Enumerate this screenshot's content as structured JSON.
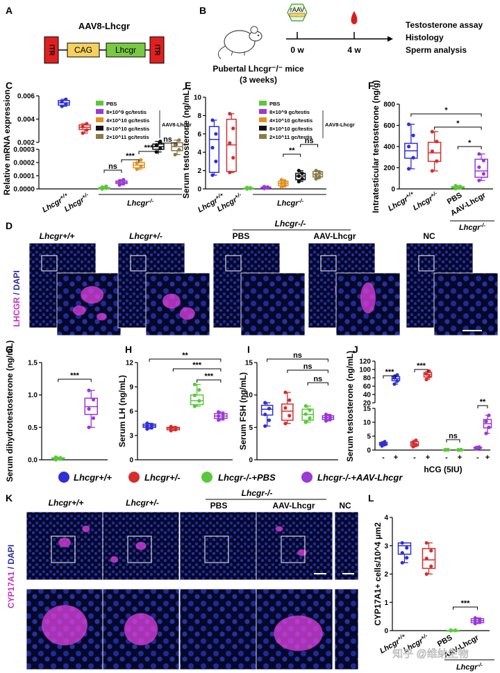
{
  "colors": {
    "wt": "#2f2fd6",
    "het": "#d62d2d",
    "pbs": "#5ac83a",
    "aav": "#9a38d8",
    "d1": "#9a38d8",
    "d2": "#e0901e",
    "d3": "#111111",
    "d4": "#8b7a4a",
    "itr": "#e02020",
    "cag": "#f5d160",
    "lhcgr_box": "#7ac943",
    "magenta": "#e040e0",
    "nuclei": "#1e2a9a"
  },
  "panel_letters": [
    "A",
    "B",
    "C",
    "D",
    "E",
    "F",
    "G",
    "H",
    "I",
    "J",
    "K",
    "L"
  ],
  "panelA": {
    "title": "AAV8-Lhcgr",
    "boxes": [
      "ITR",
      "CAG",
      "Lhcgr",
      "ITR"
    ]
  },
  "panelB": {
    "vial": "rAAV",
    "timepoints": [
      "0 w",
      "4 w"
    ],
    "mouse_line1": "Pubertal Lhcgr⁻/⁻ mice",
    "mouse_line2": "(3 weeks)",
    "outcomes": [
      "Testosterone assay",
      "Histology",
      "Sperm analysis"
    ]
  },
  "legend_doses": {
    "entries": [
      "PBS",
      "8×10^9 gc/testis",
      "4×10^10 gc/testis",
      "8×10^10 gc/testis",
      "2×10^11 gc/testis"
    ],
    "group_label": "AAV8-Lhcgr"
  },
  "genotypes": {
    "wt": "Lhcgr+/+",
    "het": "Lhcgr+/-",
    "ko": "Lhcgr-/-"
  },
  "chart_data": [
    {
      "panel": "C",
      "type": "box",
      "ylabel": "Relative mRNA expression",
      "y_upper_ticks": [
        "0.002",
        "0.004",
        "0.006"
      ],
      "y_lower_ticks": [
        "0.0000",
        "0.0001",
        "0.0002",
        "0.0003"
      ],
      "groups": [
        {
          "name": "Lhcgr+/+",
          "color": "wt",
          "median": 0.0054,
          "q1": 0.0052,
          "q3": 0.0056,
          "min": 0.0051,
          "max": 0.0057,
          "segment": "upper"
        },
        {
          "name": "Lhcgr+/-",
          "color": "het",
          "median": 0.0033,
          "q1": 0.0031,
          "q3": 0.0035,
          "min": 0.0028,
          "max": 0.0036,
          "segment": "upper"
        },
        {
          "name": "PBS",
          "color": "pbs",
          "median": 5e-06,
          "q1": 0.0,
          "q3": 1e-05,
          "min": 0.0,
          "max": 2e-05,
          "segment": "lower"
        },
        {
          "name": "8x10^9",
          "color": "d1",
          "median": 5e-05,
          "q1": 4e-05,
          "q3": 6e-05,
          "min": 3e-05,
          "max": 7e-05,
          "segment": "lower"
        },
        {
          "name": "4x10^10",
          "color": "d2",
          "median": 0.00018,
          "q1": 0.00016,
          "q3": 0.0002,
          "min": 0.00015,
          "max": 0.00022,
          "segment": "lower"
        },
        {
          "name": "8x10^10",
          "color": "d3",
          "median": 0.00032,
          "q1": 0.0003,
          "q3": 0.00034,
          "min": 0.00028,
          "max": 0.00036,
          "segment": "lower"
        },
        {
          "name": "2x10^11",
          "color": "d4",
          "median": 0.00032,
          "q1": 0.00029,
          "q3": 0.00035,
          "min": 0.00026,
          "max": 0.00037,
          "segment": "lower"
        }
      ],
      "significance": [
        "ns",
        "***",
        "***",
        "ns"
      ],
      "ko_label": "Lhcgr-/-"
    },
    {
      "panel": "E",
      "type": "box",
      "ylabel": "Serum testosterone (ng/mL)",
      "y_ticks": [
        "0",
        "2",
        "4",
        "6",
        "8",
        "10"
      ],
      "ylim": [
        0,
        10
      ],
      "groups": [
        {
          "name": "Lhcgr+/+",
          "color": "wt",
          "median": 5.4,
          "q1": 1.8,
          "q3": 6.8,
          "min": 1.5,
          "max": 7.5
        },
        {
          "name": "Lhcgr+/-",
          "color": "het",
          "median": 4.8,
          "q1": 1.9,
          "q3": 7.6,
          "min": 1.8,
          "max": 8.2
        },
        {
          "name": "PBS",
          "color": "pbs",
          "median": 0.05,
          "q1": 0.02,
          "q3": 0.1,
          "min": 0.0,
          "max": 0.15
        },
        {
          "name": "8x10^9",
          "color": "d1",
          "median": 0.15,
          "q1": 0.1,
          "q3": 0.2,
          "min": 0.05,
          "max": 0.25
        },
        {
          "name": "4x10^10",
          "color": "d2",
          "median": 0.6,
          "q1": 0.35,
          "q3": 0.85,
          "min": 0.2,
          "max": 1.0
        },
        {
          "name": "8x10^10",
          "color": "d3",
          "median": 1.4,
          "q1": 1.0,
          "q3": 1.7,
          "min": 0.8,
          "max": 2.0
        },
        {
          "name": "2x10^11",
          "color": "d4",
          "median": 1.6,
          "q1": 1.3,
          "q3": 1.9,
          "min": 1.1,
          "max": 2.0
        }
      ],
      "significance": [
        "**",
        "ns"
      ],
      "ko_label": "Lhcgr-/-"
    },
    {
      "panel": "F",
      "type": "box",
      "ylabel": "Intratesticular testosterone (ng/g)",
      "y_ticks": [
        "0",
        "200",
        "400",
        "600",
        "800"
      ],
      "ylim": [
        0,
        800
      ],
      "groups": [
        {
          "name": "Lhcgr+/+",
          "color": "wt",
          "median": 360,
          "q1": 290,
          "q3": 430,
          "min": 190,
          "max": 610
        },
        {
          "name": "Lhcgr+/-",
          "color": "het",
          "median": 340,
          "q1": 260,
          "q3": 440,
          "min": 170,
          "max": 540
        },
        {
          "name": "PBS",
          "color": "pbs",
          "median": 15,
          "q1": 8,
          "q3": 22,
          "min": 2,
          "max": 30
        },
        {
          "name": "AAV-Lhcgr",
          "color": "aav",
          "median": 170,
          "q1": 110,
          "q3": 280,
          "min": 80,
          "max": 330
        }
      ],
      "significance": [
        "*",
        "*",
        "*"
      ],
      "ko_label": "Lhcgr-/-"
    },
    {
      "panel": "G",
      "type": "box",
      "ylabel": "Serum dihydrotestosterone (ng/mL)",
      "y_ticks": [
        "0.0",
        "0.5",
        "1.0",
        "1.5"
      ],
      "ylim": [
        0,
        1.5
      ],
      "groups": [
        {
          "name": "PBS",
          "color": "pbs",
          "median": 0.02,
          "q1": 0.01,
          "q3": 0.03,
          "min": 0.0,
          "max": 0.04
        },
        {
          "name": "AAV-Lhcgr",
          "color": "aav",
          "median": 0.82,
          "q1": 0.7,
          "q3": 0.95,
          "min": 0.5,
          "max": 1.07
        }
      ],
      "significance": [
        "***"
      ]
    },
    {
      "panel": "H",
      "type": "box",
      "ylabel": "Serum LH (ng/mL)",
      "y_ticks": [
        "0",
        "3",
        "6",
        "9",
        "12"
      ],
      "ylim": [
        0,
        12
      ],
      "groups": [
        {
          "name": "Lhcgr+/+",
          "color": "wt",
          "median": 4.2,
          "q1": 4.0,
          "q3": 4.4,
          "min": 3.8,
          "max": 4.5
        },
        {
          "name": "Lhcgr+/-",
          "color": "het",
          "median": 3.9,
          "q1": 3.7,
          "q3": 4.0,
          "min": 3.6,
          "max": 4.1
        },
        {
          "name": "Lhcgr-/-+PBS",
          "color": "pbs",
          "median": 7.3,
          "q1": 6.8,
          "q3": 8.0,
          "min": 6.6,
          "max": 9.3
        },
        {
          "name": "Lhcgr-/-+AAV-Lhcgr",
          "color": "aav",
          "median": 5.4,
          "q1": 5.1,
          "q3": 5.7,
          "min": 4.9,
          "max": 5.9
        }
      ],
      "significance": [
        "**",
        "***",
        "***"
      ]
    },
    {
      "panel": "I",
      "type": "box",
      "ylabel": "Serum FSH (ng/mL)",
      "y_ticks": [
        "0",
        "5",
        "10",
        "15"
      ],
      "ylim": [
        0,
        15
      ],
      "groups": [
        {
          "name": "Lhcgr+/+",
          "color": "wt",
          "median": 7.8,
          "q1": 6.9,
          "q3": 8.4,
          "min": 5.2,
          "max": 8.8
        },
        {
          "name": "Lhcgr+/-",
          "color": "het",
          "median": 7.5,
          "q1": 6.1,
          "q3": 8.6,
          "min": 5.6,
          "max": 10.4
        },
        {
          "name": "Lhcgr-/-+PBS",
          "color": "pbs",
          "median": 7.0,
          "q1": 6.1,
          "q3": 7.8,
          "min": 5.8,
          "max": 8.3
        },
        {
          "name": "Lhcgr-/-+AAV-Lhcgr",
          "color": "aav",
          "median": 6.5,
          "q1": 6.2,
          "q3": 6.8,
          "min": 6.0,
          "max": 7.0
        }
      ],
      "significance": [
        "ns",
        "ns",
        "ns"
      ]
    },
    {
      "panel": "J",
      "type": "box",
      "ylabel": "Serum testosterone (ng/mL)",
      "y_upper_ticks": [
        "20",
        "40",
        "60",
        "80",
        "100",
        "120"
      ],
      "y_lower_ticks": [
        "0",
        "5",
        "10",
        "15"
      ],
      "xlabel": "hCG (5IU)",
      "x_ticks": [
        "-",
        "+",
        "-",
        "+",
        "-",
        "+",
        "-",
        "+"
      ],
      "groups": [
        {
          "name": "wt -",
          "color": "wt",
          "median": 2.2,
          "q1": 1.8,
          "q3": 2.7,
          "min": 1.5,
          "max": 3.0,
          "segment": "lower"
        },
        {
          "name": "wt +",
          "color": "wt",
          "median": 78,
          "q1": 73,
          "q3": 83,
          "min": 65,
          "max": 87,
          "segment": "upper"
        },
        {
          "name": "het -",
          "color": "het",
          "median": 2.0,
          "q1": 1.5,
          "q3": 3.0,
          "min": 1.2,
          "max": 3.5,
          "segment": "lower"
        },
        {
          "name": "het +",
          "color": "het",
          "median": 88,
          "q1": 82,
          "q3": 93,
          "min": 76,
          "max": 96,
          "segment": "upper"
        },
        {
          "name": "pbs -",
          "color": "pbs",
          "median": 0.1,
          "q1": 0.05,
          "q3": 0.15,
          "min": 0.0,
          "max": 0.2,
          "segment": "lower"
        },
        {
          "name": "pbs +",
          "color": "pbs",
          "median": 0.1,
          "q1": 0.05,
          "q3": 0.15,
          "min": 0.0,
          "max": 0.2,
          "segment": "lower"
        },
        {
          "name": "aav -",
          "color": "aav",
          "median": 0.8,
          "q1": 0.6,
          "q3": 1.0,
          "min": 0.5,
          "max": 1.1,
          "segment": "lower"
        },
        {
          "name": "aav +",
          "color": "aav",
          "median": 9.5,
          "q1": 8.0,
          "q3": 11.0,
          "min": 6.0,
          "max": 12.5,
          "segment": "lower"
        }
      ],
      "significance": [
        "***",
        "***",
        "ns",
        "**"
      ]
    },
    {
      "panel": "L",
      "type": "box",
      "ylabel": "CYP17A1+ cells/10^4 μm2",
      "y_ticks": [
        "0",
        "1",
        "2",
        "3",
        "4"
      ],
      "ylim": [
        0,
        4
      ],
      "groups": [
        {
          "name": "Lhcgr+/+",
          "color": "wt",
          "median": 3.0,
          "q1": 2.7,
          "q3": 3.1,
          "min": 2.4,
          "max": 3.1
        },
        {
          "name": "Lhcgr+/-",
          "color": "het",
          "median": 2.5,
          "q1": 2.2,
          "q3": 2.9,
          "min": 2.0,
          "max": 3.1
        },
        {
          "name": "PBS",
          "color": "pbs",
          "median": 0.0,
          "q1": 0.0,
          "q3": 0.01,
          "min": 0.0,
          "max": 0.02
        },
        {
          "name": "AAV-Lhcgr",
          "color": "aav",
          "median": 0.35,
          "q1": 0.28,
          "q3": 0.42,
          "min": 0.25,
          "max": 0.45
        }
      ],
      "significance": [
        "***"
      ],
      "ko_label": "Lhcgr-/-"
    }
  ],
  "panelD": {
    "headers": [
      "Lhcgr+/+",
      "Lhcgr+/-",
      "PBS",
      "AAV-Lhcgr",
      "NC"
    ],
    "ko_header": "Lhcgr-/-",
    "stain_label_1": "LHCGR",
    "stain_label_2": " / DAPI"
  },
  "panelK": {
    "headers": [
      "Lhcgr+/+",
      "Lhcgr+/-",
      "PBS",
      "AAV-Lhcgr",
      "NC"
    ],
    "ko_header": "Lhcgr-/-",
    "stain_label_1": "CYP17A1",
    "stain_label_2": " / DAPI"
  },
  "legend_main": [
    "Lhcgr+/+",
    "Lhcgr+/-",
    "Lhcgr-/-+PBS",
    "Lhcgr-/-+AAV-Lhcgr"
  ],
  "watermark": "知乎 @维纳生物"
}
